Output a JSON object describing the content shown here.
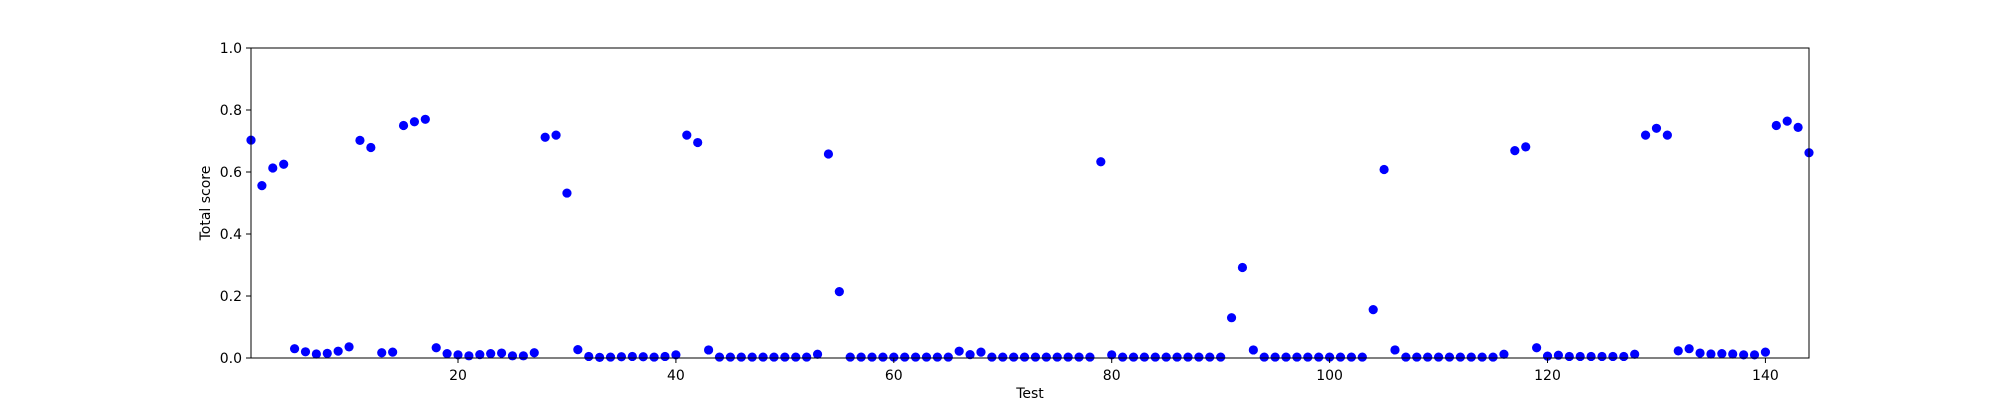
{
  "chart_data": {
    "type": "scatter",
    "title": "",
    "xlabel": "Test",
    "ylabel": "Total score",
    "xlim": [
      1,
      144
    ],
    "ylim": [
      0,
      1
    ],
    "xticks": [
      20,
      40,
      60,
      80,
      100,
      120,
      140
    ],
    "yticks": [
      0,
      0.2,
      0.4,
      0.6,
      0.8,
      1
    ],
    "ytick_labels": [
      "0.0",
      "0.2",
      "0.4",
      "0.6",
      "0.8",
      "1.0"
    ],
    "grid": false,
    "legend": "none",
    "marker_color": "#0000ff",
    "series": [
      {
        "x": [
          1,
          2,
          3,
          4,
          5,
          6,
          7,
          8,
          9,
          10,
          11,
          12,
          13,
          14,
          15,
          16,
          17,
          18,
          19,
          20,
          21,
          22,
          23,
          24,
          25,
          26,
          27,
          28,
          29,
          30,
          31,
          32,
          33,
          34,
          35,
          36,
          37,
          38,
          39,
          40,
          41,
          42,
          43,
          44,
          45,
          46,
          47,
          48,
          49,
          50,
          51,
          52,
          53,
          54,
          55,
          56,
          57,
          58,
          59,
          60,
          61,
          62,
          63,
          64,
          65,
          66,
          67,
          68,
          69,
          70,
          71,
          72,
          73,
          74,
          75,
          76,
          77,
          78,
          79,
          80,
          81,
          82,
          83,
          84,
          85,
          86,
          87,
          88,
          89,
          90,
          91,
          92,
          93,
          94,
          95,
          96,
          97,
          98,
          99,
          100,
          101,
          102,
          103,
          104,
          105,
          106,
          107,
          108,
          109,
          110,
          111,
          112,
          113,
          114,
          115,
          116,
          117,
          118,
          119,
          120,
          121,
          122,
          123,
          124,
          125,
          126,
          127,
          128,
          129,
          130,
          131,
          132,
          133,
          134,
          135,
          136,
          137,
          138,
          139,
          140,
          141,
          142,
          143,
          144
        ],
        "y": [
          0.703,
          0.556,
          0.613,
          0.625,
          0.03,
          0.02,
          0.013,
          0.015,
          0.022,
          0.036,
          0.702,
          0.679,
          0.017,
          0.019,
          0.75,
          0.762,
          0.77,
          0.033,
          0.014,
          0.01,
          0.007,
          0.011,
          0.014,
          0.016,
          0.007,
          0.007,
          0.017,
          0.712,
          0.719,
          0.532,
          0.027,
          0.005,
          0.002,
          0.003,
          0.004,
          0.005,
          0.004,
          0.003,
          0.005,
          0.01,
          0.719,
          0.695,
          0.026,
          0.003,
          0.003,
          0.003,
          0.003,
          0.003,
          0.003,
          0.003,
          0.003,
          0.003,
          0.012,
          0.658,
          0.214,
          0.003,
          0.003,
          0.003,
          0.003,
          0.003,
          0.003,
          0.003,
          0.003,
          0.003,
          0.003,
          0.022,
          0.011,
          0.019,
          0.003,
          0.003,
          0.003,
          0.003,
          0.003,
          0.003,
          0.003,
          0.003,
          0.003,
          0.003,
          0.633,
          0.01,
          0.003,
          0.003,
          0.003,
          0.003,
          0.003,
          0.003,
          0.003,
          0.003,
          0.003,
          0.003,
          0.13,
          0.292,
          0.026,
          0.003,
          0.003,
          0.003,
          0.003,
          0.003,
          0.003,
          0.003,
          0.003,
          0.003,
          0.003,
          0.156,
          0.608,
          0.026,
          0.003,
          0.003,
          0.003,
          0.003,
          0.003,
          0.003,
          0.003,
          0.003,
          0.003,
          0.012,
          0.669,
          0.681,
          0.033,
          0.006,
          0.009,
          0.005,
          0.005,
          0.005,
          0.005,
          0.005,
          0.005,
          0.012,
          0.719,
          0.741,
          0.719,
          0.023,
          0.03,
          0.016,
          0.013,
          0.014,
          0.013,
          0.01,
          0.01,
          0.019,
          0.75,
          0.764,
          0.744,
          0.662
        ]
      }
    ]
  }
}
